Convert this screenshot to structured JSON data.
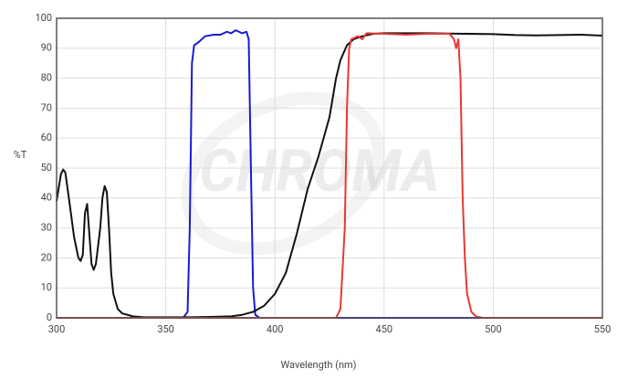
{
  "chart_data": {
    "type": "line",
    "watermark": "CHROMA",
    "x_label": "Wavelength (nm)",
    "y_label": "%T",
    "xlim": [
      300,
      550
    ],
    "ylim": [
      0,
      100
    ],
    "xticks": [
      300,
      350,
      400,
      450,
      500,
      550
    ],
    "yticks": [
      0,
      10,
      20,
      30,
      40,
      50,
      60,
      70,
      80,
      90,
      100
    ],
    "grid": true,
    "series": [
      {
        "color": "#1a1ad6",
        "x": [
          300,
          358,
          360,
          361,
          362,
          363,
          365,
          368,
          372,
          375,
          378,
          380,
          382,
          385,
          387,
          388,
          389,
          390,
          391,
          393,
          550
        ],
        "values": [
          0,
          0,
          2,
          30,
          85,
          91,
          92,
          94,
          94.5,
          94.5,
          95.5,
          95,
          96,
          95,
          95.5,
          93,
          50,
          10,
          1,
          0,
          0
        ]
      },
      {
        "color": "#111111",
        "x": [
          300,
          302,
          303,
          304,
          306,
          308,
          310,
          311,
          312,
          313,
          314,
          315,
          316,
          317,
          318,
          320,
          321,
          322,
          323,
          324,
          325,
          326,
          328,
          330,
          335,
          340,
          360,
          370,
          380,
          385,
          390,
          395,
          400,
          405,
          410,
          415,
          420,
          425,
          428,
          430,
          433,
          436,
          440,
          445,
          450,
          470,
          500,
          510,
          520,
          530,
          540,
          550
        ],
        "values": [
          39,
          48,
          49.5,
          48.5,
          38,
          27,
          20,
          19,
          21,
          35,
          38,
          28,
          18,
          16,
          18,
          30,
          40,
          44,
          42,
          30,
          15,
          8,
          3,
          1.5,
          0.5,
          0.2,
          0.2,
          0.3,
          0.5,
          1,
          2,
          4,
          8,
          15,
          28,
          43,
          54,
          67,
          80,
          86,
          91,
          93,
          94,
          94.8,
          95,
          95,
          94.7,
          94.4,
          94.3,
          94.4,
          94.5,
          94.2
        ]
      },
      {
        "color": "#e53935",
        "x": [
          300,
          428,
          430,
          432,
          433,
          434,
          435,
          438,
          440,
          442,
          450,
          460,
          470,
          480,
          482,
          483,
          484,
          485,
          486,
          487,
          488,
          490,
          492,
          495,
          550
        ],
        "values": [
          0,
          0,
          3,
          30,
          70,
          90,
          93,
          94,
          93,
          95,
          94.8,
          94.5,
          94.8,
          94.8,
          93,
          90,
          93,
          80,
          40,
          20,
          8,
          2,
          0.5,
          0,
          0
        ]
      }
    ]
  }
}
